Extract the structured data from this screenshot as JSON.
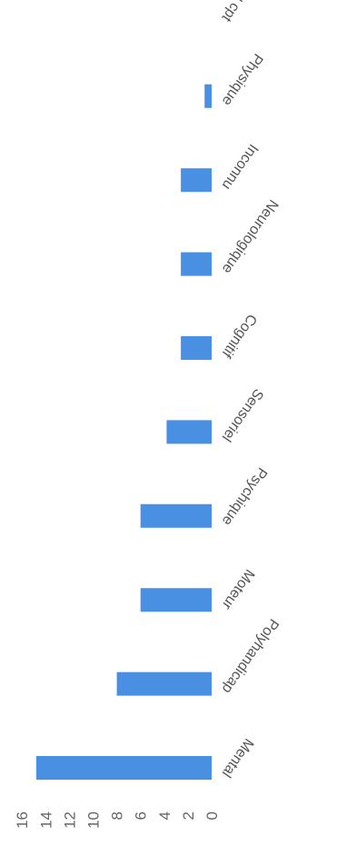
{
  "chart_data": {
    "type": "bar",
    "orientation": "horizontal",
    "rotated": "scanned page rotated 90 degrees",
    "categories": [
      "Mental",
      "Polyhandicap",
      "Moteur",
      "Psychique",
      "Sensoriel",
      "Cognitif",
      "Neurologique",
      "Inconnu",
      "Physique",
      "Troubles du cpt"
    ],
    "values": [
      14.8,
      8,
      6,
      6,
      3.8,
      2.6,
      2.6,
      2.6,
      0.6,
      0
    ],
    "value_axis": {
      "min": 0,
      "max": 16,
      "ticks": [
        "0",
        "2",
        "4",
        "6",
        "8",
        "10",
        "12",
        "14",
        "16"
      ]
    },
    "title": "",
    "xlabel": "",
    "ylabel": "",
    "grid": false,
    "legend": "none",
    "colors": {
      "bar": "#4a90e2",
      "tick_text": "#666666",
      "category_text": "#555555"
    }
  }
}
